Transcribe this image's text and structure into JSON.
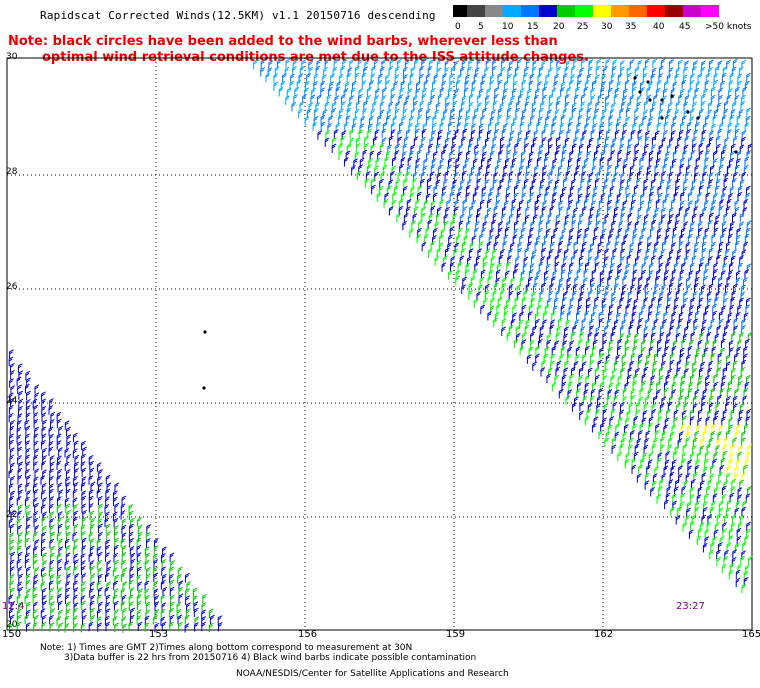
{
  "header": {
    "title": "Rapidscat Corrected Winds(12.5KM) v1.1 20150716 descending",
    "note_line1": "Note: black circles have been added to the wind barbs, wherever less than",
    "note_line2": "optimal wind retrieval conditions are met due to the ISS attitude changes."
  },
  "legend": {
    "labels": [
      "0",
      "5",
      "10",
      "15",
      "20",
      "25",
      "30",
      "35",
      "40",
      "45",
      ">50 knots"
    ],
    "colors": [
      "#000000",
      "#444444",
      "#888888",
      "#00aaff",
      "#0077ff",
      "#0000cc",
      "#00cc00",
      "#00ff00",
      "#ffff00",
      "#ff9900",
      "#ff6600",
      "#ff0000",
      "#990000",
      "#cc00cc",
      "#ff00ff"
    ]
  },
  "map": {
    "lat_labels": [
      "30",
      "28",
      "26",
      "24",
      "22",
      "20"
    ],
    "lon_labels": [
      "150",
      "153",
      "156",
      "159",
      "162",
      "165"
    ],
    "time_left": "12:4",
    "time_right": "23:27"
  },
  "footer": {
    "line1": "Note: 1) Times are GMT 2)Times along bottom correspond to measurement at 30N",
    "line2": "3)Data buffer is 22 hrs from 20150716 4) Black wind barbs indicate possible contamination",
    "line3": "NOAA/NESDIS/Center for Satellite Applications and Research"
  }
}
